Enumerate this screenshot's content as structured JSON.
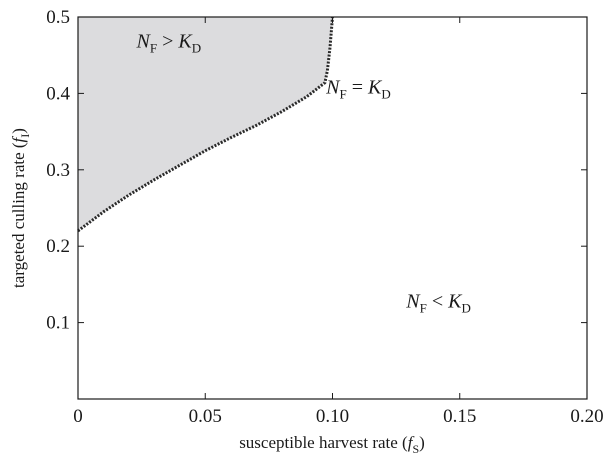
{
  "chart_data": {
    "type": "area",
    "xlabel": {
      "prefix": "susceptible harvest rate (",
      "var": "f",
      "sub": "S",
      "suffix": ")"
    },
    "ylabel": {
      "prefix": "targeted culling rate (",
      "var": "f",
      "sub": "I",
      "suffix": ")"
    },
    "xlim": [
      0,
      0.2
    ],
    "ylim": [
      0,
      0.5
    ],
    "xticks": [
      {
        "value": 0,
        "label": "0"
      },
      {
        "value": 0.05,
        "label": "0.05"
      },
      {
        "value": 0.1,
        "label": "0.10"
      },
      {
        "value": 0.15,
        "label": "0.15"
      },
      {
        "value": 0.2,
        "label": "0.20"
      }
    ],
    "yticks": [
      {
        "value": 0.1,
        "label": "0.1"
      },
      {
        "value": 0.2,
        "label": "0.2"
      },
      {
        "value": 0.3,
        "label": "0.3"
      },
      {
        "value": 0.4,
        "label": "0.4"
      },
      {
        "value": 0.5,
        "label": "0.5"
      }
    ],
    "grid": false,
    "boundary": {
      "x": [
        0,
        0.01,
        0.02,
        0.03,
        0.04,
        0.05,
        0.06,
        0.07,
        0.08,
        0.09,
        0.097,
        0.098,
        0.099,
        0.1
      ],
      "y": [
        0.22,
        0.245,
        0.267,
        0.287,
        0.306,
        0.325,
        0.342,
        0.358,
        0.376,
        0.396,
        0.414,
        0.43,
        0.46,
        0.5
      ]
    },
    "shaded_region_color": "#dcdcde",
    "boundary_color": "#2a2a2a",
    "region_labels": [
      {
        "var1": "N",
        "sub1": "F",
        "op": ">",
        "var2": "K",
        "sub2": "D",
        "x": 0.023,
        "y": 0.46
      },
      {
        "var1": "N",
        "sub1": "F",
        "op": "=",
        "var2": "K",
        "sub2": "D",
        "x": 0.0975,
        "y": 0.4
      },
      {
        "var1": "N",
        "sub1": "F",
        "op": "<",
        "var2": "K",
        "sub2": "D",
        "x": 0.129,
        "y": 0.12
      }
    ]
  }
}
